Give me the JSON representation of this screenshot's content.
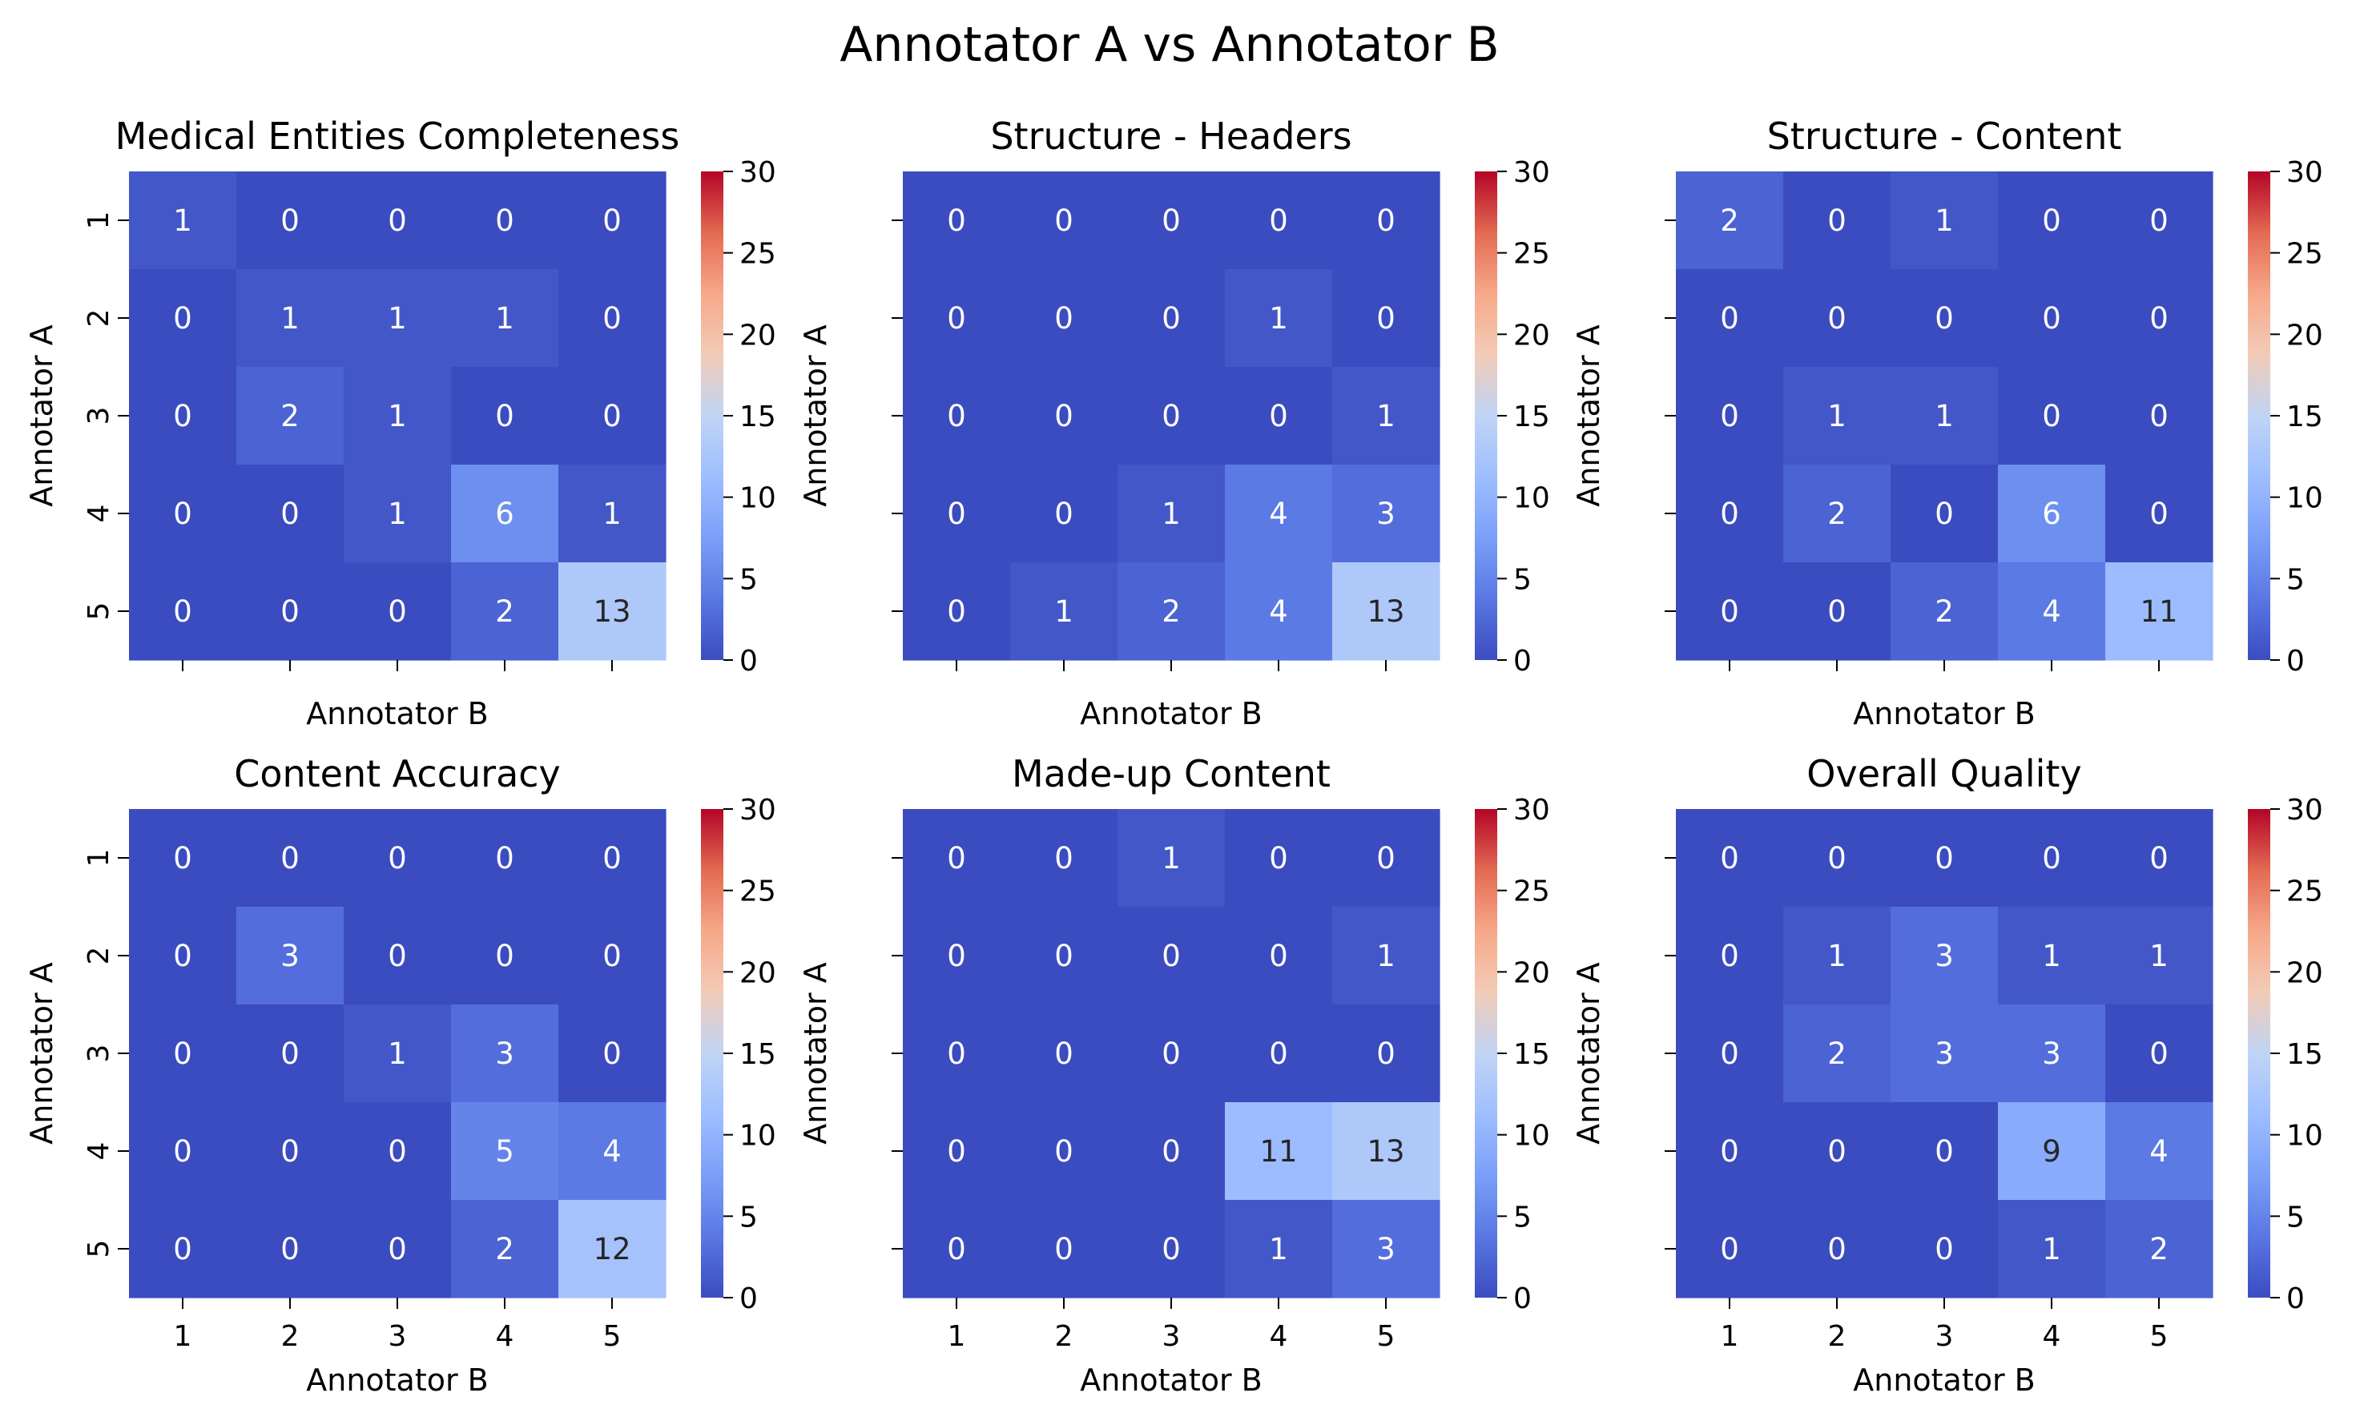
{
  "figure": {
    "title": "Annotator A vs Annotator B"
  },
  "colorbar": {
    "ticks": [
      0,
      5,
      10,
      15,
      20,
      25,
      30
    ],
    "vmin": 0,
    "vmax": 30,
    "colormap": "coolwarm"
  },
  "chart_data": [
    {
      "type": "heatmap",
      "title": "Medical Entities Completeness",
      "xlabel": "Annotator B",
      "ylabel": "Annotator A",
      "x_categories": [
        "1",
        "2",
        "3",
        "4",
        "5"
      ],
      "y_categories": [
        "1",
        "2",
        "3",
        "4",
        "5"
      ],
      "values": [
        [
          1,
          0,
          0,
          0,
          0
        ],
        [
          0,
          1,
          1,
          1,
          0
        ],
        [
          0,
          2,
          1,
          0,
          0
        ],
        [
          0,
          0,
          1,
          6,
          1
        ],
        [
          0,
          0,
          0,
          2,
          13
        ]
      ],
      "show_ylabel": true,
      "show_yticklabels": true,
      "show_xticklabels": false
    },
    {
      "type": "heatmap",
      "title": "Structure - Headers",
      "xlabel": "Annotator B",
      "ylabel": "Annotator A",
      "x_categories": [
        "1",
        "2",
        "3",
        "4",
        "5"
      ],
      "y_categories": [
        "1",
        "2",
        "3",
        "4",
        "5"
      ],
      "values": [
        [
          0,
          0,
          0,
          0,
          0
        ],
        [
          0,
          0,
          0,
          1,
          0
        ],
        [
          0,
          0,
          0,
          0,
          1
        ],
        [
          0,
          0,
          1,
          4,
          3
        ],
        [
          0,
          1,
          2,
          4,
          13
        ]
      ],
      "show_ylabel": true,
      "show_yticklabels": false,
      "show_xticklabels": false
    },
    {
      "type": "heatmap",
      "title": "Structure - Content",
      "xlabel": "Annotator B",
      "ylabel": "Annotator A",
      "x_categories": [
        "1",
        "2",
        "3",
        "4",
        "5"
      ],
      "y_categories": [
        "1",
        "2",
        "3",
        "4",
        "5"
      ],
      "values": [
        [
          2,
          0,
          1,
          0,
          0
        ],
        [
          0,
          0,
          0,
          0,
          0
        ],
        [
          0,
          1,
          1,
          0,
          0
        ],
        [
          0,
          2,
          0,
          6,
          0
        ],
        [
          0,
          0,
          2,
          4,
          11
        ]
      ],
      "show_ylabel": true,
      "show_yticklabels": false,
      "show_xticklabels": false
    },
    {
      "type": "heatmap",
      "title": "Content Accuracy",
      "xlabel": "Annotator B",
      "ylabel": "Annotator A",
      "x_categories": [
        "1",
        "2",
        "3",
        "4",
        "5"
      ],
      "y_categories": [
        "1",
        "2",
        "3",
        "4",
        "5"
      ],
      "values": [
        [
          0,
          0,
          0,
          0,
          0
        ],
        [
          0,
          3,
          0,
          0,
          0
        ],
        [
          0,
          0,
          1,
          3,
          0
        ],
        [
          0,
          0,
          0,
          5,
          4
        ],
        [
          0,
          0,
          0,
          2,
          12
        ]
      ],
      "show_ylabel": true,
      "show_yticklabels": true,
      "show_xticklabels": true
    },
    {
      "type": "heatmap",
      "title": "Made-up Content",
      "xlabel": "Annotator B",
      "ylabel": "Annotator A",
      "x_categories": [
        "1",
        "2",
        "3",
        "4",
        "5"
      ],
      "y_categories": [
        "1",
        "2",
        "3",
        "4",
        "5"
      ],
      "values": [
        [
          0,
          0,
          1,
          0,
          0
        ],
        [
          0,
          0,
          0,
          0,
          1
        ],
        [
          0,
          0,
          0,
          0,
          0
        ],
        [
          0,
          0,
          0,
          11,
          13
        ],
        [
          0,
          0,
          0,
          1,
          3
        ]
      ],
      "show_ylabel": true,
      "show_yticklabels": false,
      "show_xticklabels": true
    },
    {
      "type": "heatmap",
      "title": "Overall Quality",
      "xlabel": "Annotator B",
      "ylabel": "Annotator A",
      "x_categories": [
        "1",
        "2",
        "3",
        "4",
        "5"
      ],
      "y_categories": [
        "1",
        "2",
        "3",
        "4",
        "5"
      ],
      "values": [
        [
          0,
          0,
          0,
          0,
          0
        ],
        [
          0,
          1,
          3,
          1,
          1
        ],
        [
          0,
          2,
          3,
          3,
          0
        ],
        [
          0,
          0,
          0,
          9,
          4
        ],
        [
          0,
          0,
          0,
          1,
          2
        ]
      ],
      "show_ylabel": true,
      "show_yticklabels": false,
      "show_xticklabels": true
    }
  ]
}
